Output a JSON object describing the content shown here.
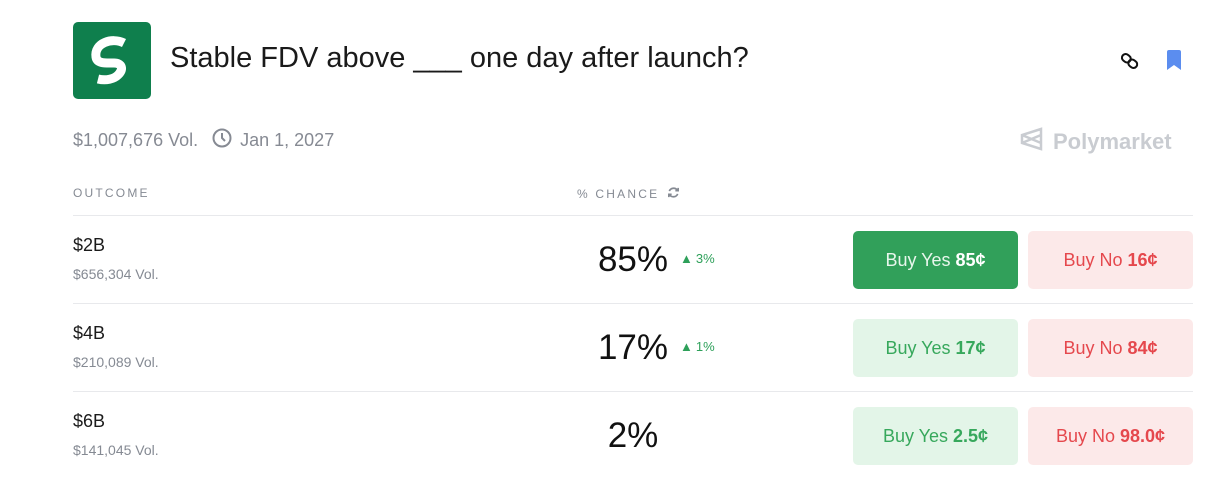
{
  "header": {
    "title": "Stable FDV above ___ one day after launch?",
    "volume": "$1,007,676 Vol.",
    "end_date": "Jan 1, 2027",
    "brand": "Polymarket",
    "logo_color": "#0f7f4d"
  },
  "table": {
    "col_outcome": "OUTCOME",
    "col_chance": "% CHANCE"
  },
  "rows": [
    {
      "name": "$2B",
      "vol": "$656,304 Vol.",
      "pct": "85%",
      "change": "3%",
      "yes_label": "Buy Yes",
      "yes_price": "85¢",
      "no_label": "Buy No",
      "no_price": "16¢"
    },
    {
      "name": "$4B",
      "vol": "$210,089 Vol.",
      "pct": "17%",
      "change": "1%",
      "yes_label": "Buy Yes",
      "yes_price": "17¢",
      "no_label": "Buy No",
      "no_price": "84¢"
    },
    {
      "name": "$6B",
      "vol": "$141,045 Vol.",
      "pct": "2%",
      "yes_label": "Buy Yes",
      "yes_price": "2.5¢",
      "no_label": "Buy No",
      "no_price": "98.0¢"
    }
  ],
  "colors": {
    "yes": "#31a05a",
    "no": "#e5484d",
    "bookmark": "#5b8def"
  }
}
